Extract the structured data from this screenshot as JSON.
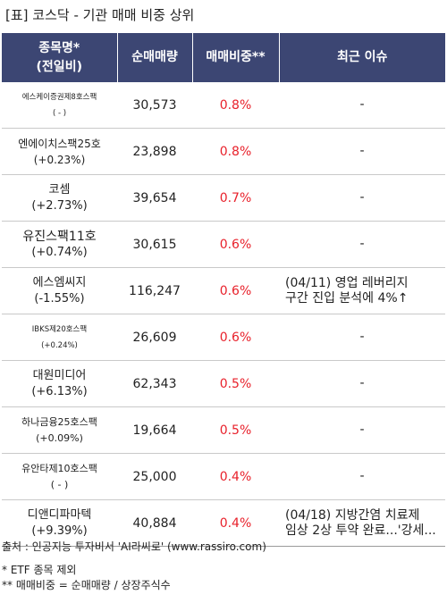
{
  "title": "[표] 코스닥 - 기관 매매 비중 상위",
  "headers": {
    "name_line1": "종목명*",
    "name_line2": "(전일비)",
    "volume": "순매매량",
    "ratio": "매매비중**",
    "issue": "최근 이슈"
  },
  "rows": [
    {
      "name": "에스케이증권제8호스팩",
      "change": "( - )",
      "volume": "30,573",
      "ratio": "0.8%",
      "issue1": "-",
      "issue2": ""
    },
    {
      "name": "엔에이치스팩25호",
      "change": "(+0.23%)",
      "volume": "23,898",
      "ratio": "0.8%",
      "issue1": "-",
      "issue2": ""
    },
    {
      "name": "코셈",
      "change": "(+2.73%)",
      "volume": "39,654",
      "ratio": "0.7%",
      "issue1": "-",
      "issue2": ""
    },
    {
      "name": "유진스팩11호",
      "change": "(+0.74%)",
      "volume": "30,615",
      "ratio": "0.6%",
      "issue1": "-",
      "issue2": ""
    },
    {
      "name": "에스엠씨지",
      "change": "(-1.55%)",
      "volume": "116,247",
      "ratio": "0.6%",
      "issue1": "(04/11) 영업 레버리지",
      "issue2": "구간 진입 분석에 4%↑"
    },
    {
      "name": "IBKS제20호스팩",
      "change": "(+0.24%)",
      "volume": "26,609",
      "ratio": "0.6%",
      "issue1": "-",
      "issue2": ""
    },
    {
      "name": "대원미디어",
      "change": "(+6.13%)",
      "volume": "62,343",
      "ratio": "0.5%",
      "issue1": "-",
      "issue2": ""
    },
    {
      "name": "하나금융25호스팩",
      "change": "(+0.09%)",
      "volume": "19,664",
      "ratio": "0.5%",
      "issue1": "-",
      "issue2": ""
    },
    {
      "name": "유안타제10호스팩",
      "change": "( - )",
      "volume": "25,000",
      "ratio": "0.4%",
      "issue1": "-",
      "issue2": ""
    },
    {
      "name": "디앤디파마텍",
      "change": "(+9.39%)",
      "volume": "40,884",
      "ratio": "0.4%",
      "issue1": "(04/18) 지방간염 치료제",
      "issue2": "임상 2상 투약 완료...'강세..."
    }
  ],
  "footer": {
    "source": "출처 : 인공지능 투자비서 'AI라씨로' (www.rassiro.com)",
    "note1": "* ETF 종목 제외",
    "note2": "** 매매비중 = 순매매량 / 상장주식수"
  }
}
